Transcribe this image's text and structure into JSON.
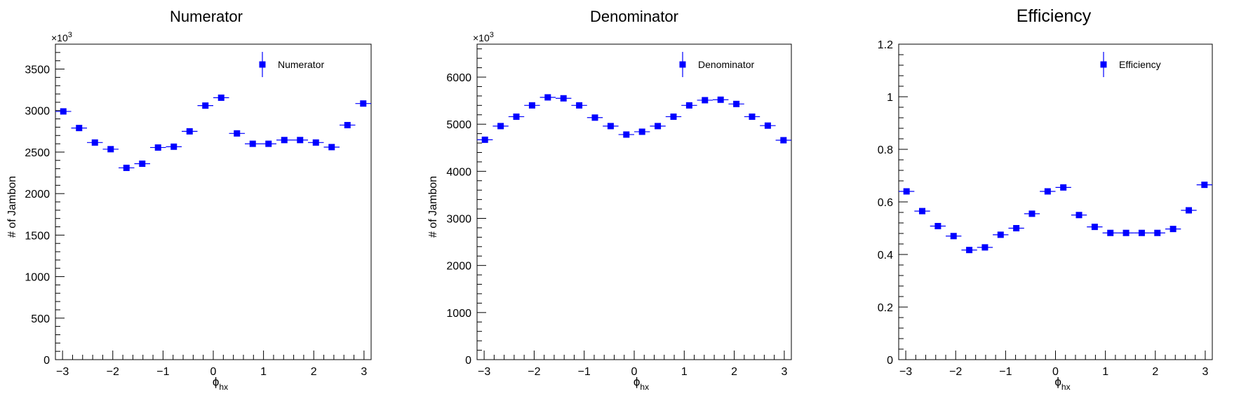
{
  "chart_data": [
    {
      "type": "scatter",
      "title": "Numerator",
      "xlabel": "ϕ",
      "xlabel_sub": "hx",
      "ylabel": "# of Jambon",
      "y_multiplier": "×10",
      "y_multiplier_exp": "3",
      "xlim": [
        -3.14159,
        3.14159
      ],
      "ylim": [
        0,
        3800
      ],
      "xticks": [
        -3,
        -2,
        -1,
        0,
        1,
        2,
        3
      ],
      "xtick_labels": [
        "−3",
        "−2",
        "−1",
        "0",
        "1",
        "2",
        "3"
      ],
      "yticks": [
        0,
        500,
        1000,
        1500,
        2000,
        2500,
        3000,
        3500
      ],
      "ytick_labels": [
        "0",
        "500",
        "1000",
        "1500",
        "2000",
        "2500",
        "3000",
        "3500"
      ],
      "legend": {
        "label": "Numerator",
        "placement": "top-right"
      },
      "series": [
        {
          "name": "Numerator",
          "marker": "square",
          "color": "#0000ff",
          "x": [
            -2.9845,
            -2.6704,
            -2.3562,
            -2.042,
            -1.7279,
            -1.4137,
            -1.0996,
            -0.7854,
            -0.4712,
            -0.1571,
            0.1571,
            0.4712,
            0.7854,
            1.0996,
            1.4137,
            1.7279,
            2.042,
            2.3562,
            2.6704,
            2.9845
          ],
          "y": [
            2990,
            2790,
            2615,
            2535,
            2310,
            2360,
            2555,
            2565,
            2750,
            3060,
            3155,
            2725,
            2600,
            2600,
            2645,
            2645,
            2615,
            2560,
            2825,
            3085
          ]
        }
      ]
    },
    {
      "type": "scatter",
      "title": "Denominator",
      "xlabel": "ϕ",
      "xlabel_sub": "hx",
      "ylabel": "# of Jambon",
      "y_multiplier": "×10",
      "y_multiplier_exp": "3",
      "xlim": [
        -3.14159,
        3.14159
      ],
      "ylim": [
        0,
        6700
      ],
      "xticks": [
        -3,
        -2,
        -1,
        0,
        1,
        2,
        3
      ],
      "xtick_labels": [
        "−3",
        "−2",
        "−1",
        "0",
        "1",
        "2",
        "3"
      ],
      "yticks": [
        0,
        1000,
        2000,
        3000,
        4000,
        5000,
        6000
      ],
      "ytick_labels": [
        "0",
        "1000",
        "2000",
        "3000",
        "4000",
        "5000",
        "6000"
      ],
      "legend": {
        "label": "Denominator",
        "placement": "top-right"
      },
      "series": [
        {
          "name": "Denominator",
          "marker": "square",
          "color": "#0000ff",
          "x": [
            -2.9845,
            -2.6704,
            -2.3562,
            -2.042,
            -1.7279,
            -1.4137,
            -1.0996,
            -0.7854,
            -0.4712,
            -0.1571,
            0.1571,
            0.4712,
            0.7854,
            1.0996,
            1.4137,
            1.7279,
            2.042,
            2.3562,
            2.6704,
            2.9845
          ],
          "y": [
            4670,
            4960,
            5160,
            5400,
            5570,
            5550,
            5400,
            5140,
            4960,
            4780,
            4840,
            4960,
            5160,
            5400,
            5510,
            5520,
            5430,
            5160,
            4970,
            4660
          ]
        }
      ]
    },
    {
      "type": "scatter",
      "title": "Efficiency",
      "xlabel": "ϕ",
      "xlabel_sub": "hx",
      "ylabel": "",
      "xlim": [
        -3.14159,
        3.14159
      ],
      "ylim": [
        0,
        1.2
      ],
      "xticks": [
        -3,
        -2,
        -1,
        0,
        1,
        2,
        3
      ],
      "xtick_labels": [
        "−3",
        "−2",
        "−1",
        "0",
        "1",
        "2",
        "3"
      ],
      "yticks": [
        0,
        0.2,
        0.4,
        0.6,
        0.8,
        1.0,
        1.2
      ],
      "ytick_labels": [
        "0",
        "0.2",
        "0.4",
        "0.6",
        "0.8",
        "1",
        "1.2"
      ],
      "legend": {
        "label": "Efficiency",
        "placement": "top-right"
      },
      "series": [
        {
          "name": "Efficiency",
          "marker": "square",
          "color": "#0000ff",
          "x": [
            -2.9845,
            -2.6704,
            -2.3562,
            -2.042,
            -1.7279,
            -1.4137,
            -1.0996,
            -0.7854,
            -0.4712,
            -0.1571,
            0.1571,
            0.4712,
            0.7854,
            1.0996,
            1.4137,
            1.7279,
            2.042,
            2.3562,
            2.6704,
            2.9845
          ],
          "y": [
            0.64,
            0.565,
            0.508,
            0.47,
            0.417,
            0.427,
            0.475,
            0.5,
            0.555,
            0.64,
            0.655,
            0.55,
            0.505,
            0.482,
            0.482,
            0.482,
            0.482,
            0.497,
            0.568,
            0.665
          ]
        }
      ]
    }
  ]
}
